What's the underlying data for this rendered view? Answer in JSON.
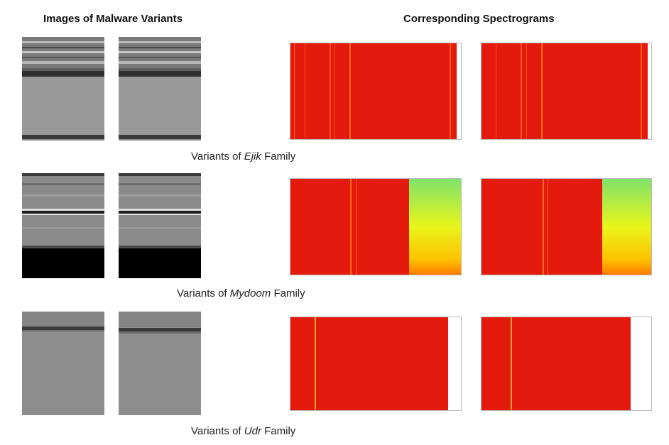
{
  "headers": {
    "left": "Images of Malware Variants",
    "right": "Corresponding Spectrograms"
  },
  "rows": [
    {
      "caption_prefix": "Variants of ",
      "family": "Ejik",
      "caption_suffix": " Family"
    },
    {
      "caption_prefix": "Variants of ",
      "family": "Mydoom",
      "caption_suffix": " Family"
    },
    {
      "caption_prefix": "Variants of ",
      "family": "Udr",
      "caption_suffix": " Family"
    }
  ],
  "colors": {
    "spectrogram_red": "#e31a0c",
    "spectrogram_line": "#ff6a1e",
    "spectrogram_gradient_top": "#7fe36a",
    "spectrogram_gradient_mid": "#e8f51a",
    "spectrogram_gradient_bottom": "#ff8a00",
    "malware_gray": "#8a8a8a",
    "malware_black": "#000000"
  }
}
